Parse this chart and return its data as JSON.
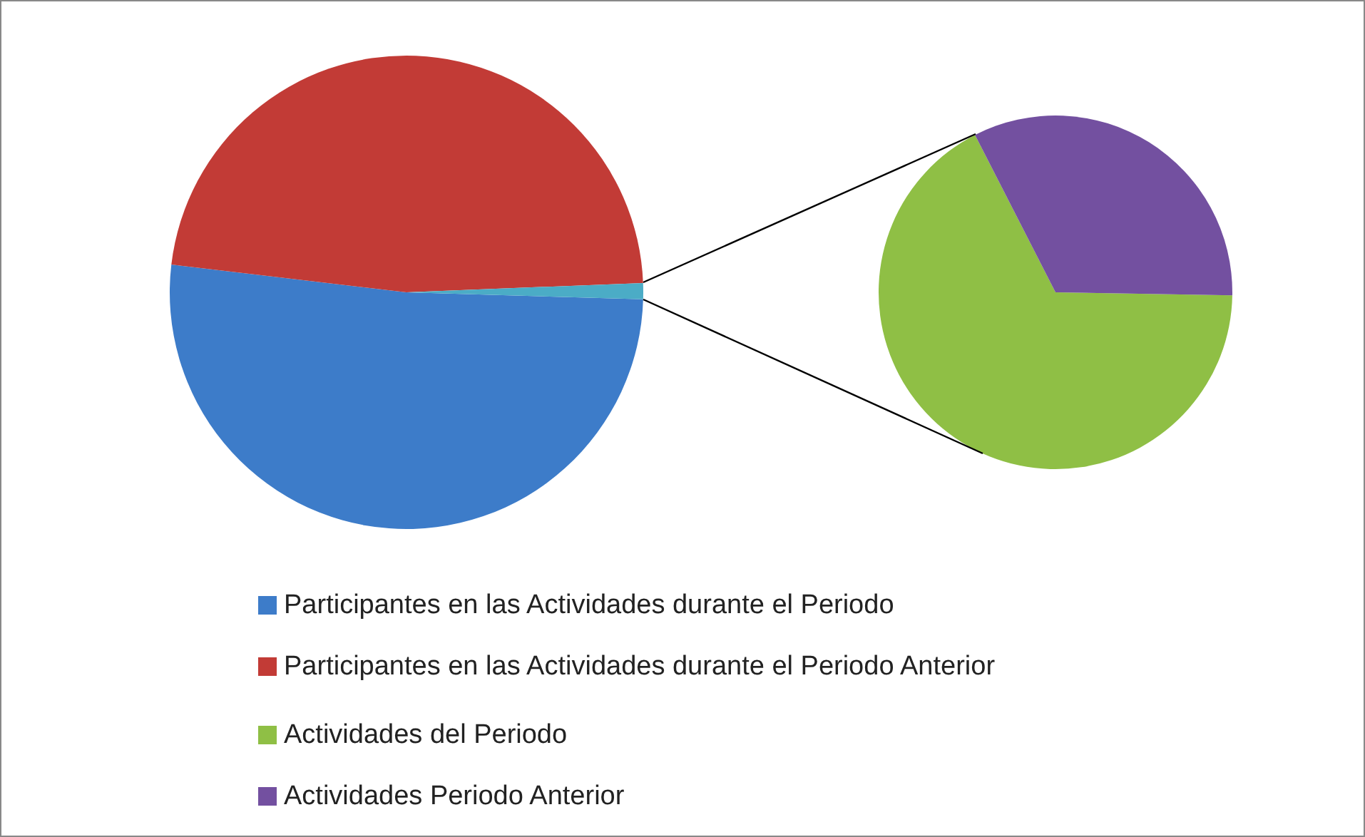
{
  "chart_data": [
    {
      "type": "pie",
      "categories": [
        "Participantes en las Actividades durante el Periodo",
        "Participantes en las Actividades durante el Periodo Anterior",
        null
      ],
      "values": [
        51.4,
        47.5,
        1.1
      ],
      "colors": [
        "#3d7cc9",
        "#c23b36",
        "#4bacc6"
      ],
      "legend": "bottom"
    },
    {
      "type": "pie",
      "categories": [
        "Actividades del Periodo",
        "Actividades Periodo Anterior"
      ],
      "values": [
        67.2,
        32.8
      ],
      "colors": [
        "#8fbf45",
        "#7350a0"
      ],
      "legend": "bottom"
    }
  ]
}
